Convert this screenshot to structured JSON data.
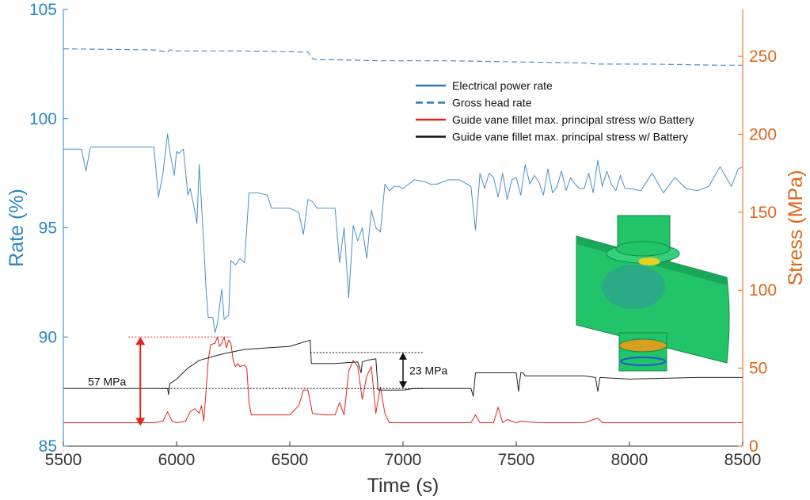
{
  "chart_data": {
    "type": "line",
    "title": "",
    "xlabel": "Time (s)",
    "ylabel_left": "Rate (%)",
    "ylabel_right": "Stress (MPa)",
    "xlim": [
      5500,
      8500
    ],
    "ylim_left": [
      85,
      105
    ],
    "ylim_right": [
      0,
      280
    ],
    "xticks": [
      5500,
      6000,
      6500,
      7000,
      7500,
      8000,
      8500
    ],
    "yticks_left": [
      85,
      90,
      95,
      100,
      105
    ],
    "yticks_right": [
      0,
      50,
      100,
      150,
      200,
      250
    ],
    "grid": false,
    "legend_position": "top-right",
    "colors": {
      "left_axis": "#2a86c4",
      "right_axis": "#e0651a",
      "power": "#4a90c8",
      "head": "#4a90c8",
      "stress_wo": "#e0241d",
      "stress_w": "#222222",
      "annotation_red": "#e0241d",
      "annotation_black": "#111111"
    },
    "series": [
      {
        "name": "Electrical power rate",
        "axis": "left",
        "style": "solid",
        "x": [
          5500,
          5580,
          5600,
          5620,
          5700,
          5800,
          5850,
          5900,
          5920,
          5940,
          5960,
          5970,
          5990,
          6000,
          6010,
          6030,
          6050,
          6060,
          6080,
          6090,
          6100,
          6120,
          6130,
          6140,
          6160,
          6170,
          6180,
          6200,
          6210,
          6230,
          6240,
          6260,
          6280,
          6300,
          6310,
          6320,
          6340,
          6360,
          6400,
          6420,
          6500,
          6540,
          6560,
          6580,
          6600,
          6620,
          6650,
          6680,
          6700,
          6720,
          6740,
          6760,
          6780,
          6800,
          6820,
          6840,
          6860,
          6880,
          6900,
          6920,
          6940,
          6960,
          6980,
          7000,
          7050,
          7100,
          7120,
          7150,
          7200,
          7250,
          7300,
          7320,
          7340,
          7360,
          7380,
          7400,
          7420,
          7440,
          7460,
          7480,
          7500,
          7520,
          7540,
          7560,
          7580,
          7600,
          7620,
          7640,
          7660,
          7680,
          7700,
          7720,
          7740,
          7760,
          7780,
          7800,
          7820,
          7840,
          7860,
          7880,
          7900,
          7920,
          7940,
          7960,
          7980,
          8000,
          8050,
          8100,
          8150,
          8200,
          8250,
          8300,
          8350,
          8400,
          8450,
          8480,
          8500
        ],
        "values": [
          98.6,
          98.6,
          97.6,
          98.7,
          98.7,
          98.7,
          98.7,
          98.7,
          96.4,
          97.5,
          99.3,
          98.5,
          97.4,
          98.5,
          98.4,
          98.6,
          96.5,
          96.8,
          95.8,
          95.2,
          97.9,
          94.3,
          92.2,
          90.9,
          90.9,
          90.2,
          90.6,
          92.2,
          90.8,
          91.0,
          93.5,
          93.3,
          93.6,
          93.4,
          95.0,
          96.6,
          96.6,
          96.6,
          96.5,
          95.9,
          95.9,
          95.7,
          94.7,
          96.3,
          96.2,
          95.9,
          95.9,
          95.9,
          95.9,
          93.4,
          95.0,
          91.8,
          95.1,
          94.4,
          95.0,
          93.6,
          95.8,
          95.0,
          94.8,
          97.0,
          96.7,
          96.9,
          96.9,
          96.8,
          97.2,
          97.1,
          97.0,
          97.0,
          97.2,
          97.2,
          96.9,
          94.9,
          97.5,
          96.8,
          97.5,
          97.3,
          96.4,
          97.5,
          96.3,
          97.2,
          97.3,
          96.5,
          97.9,
          97.0,
          97.4,
          97.1,
          96.5,
          97.7,
          96.6,
          96.9,
          97.6,
          96.7,
          97.3,
          97.0,
          96.8,
          96.8,
          97.5,
          96.6,
          98.1,
          96.9,
          97.6,
          97.0,
          96.7,
          97.4,
          96.8,
          96.8,
          96.7,
          97.5,
          96.6,
          97.3,
          96.8,
          96.7,
          96.9,
          97.8,
          96.9,
          97.7,
          97.8
        ]
      },
      {
        "name": "Gross head rate",
        "axis": "left",
        "style": "dashed",
        "x": [
          5500,
          5900,
          5960,
          5970,
          6000,
          6300,
          6580,
          6600,
          6620,
          6700,
          6900,
          7200,
          7500,
          7800,
          7860,
          8100,
          8400,
          8500
        ],
        "values": [
          103.2,
          103.15,
          103.05,
          103.15,
          103.1,
          103.1,
          103.05,
          102.75,
          102.7,
          102.7,
          102.65,
          102.65,
          102.6,
          102.55,
          102.5,
          102.5,
          102.45,
          102.45
        ]
      },
      {
        "name": "Guide vane fillet max. principal stress w/o Battery",
        "axis": "right",
        "style": "solid",
        "x": [
          5500,
          5900,
          5940,
          5960,
          5980,
          6000,
          6040,
          6060,
          6080,
          6100,
          6110,
          6120,
          6130,
          6140,
          6150,
          6170,
          6180,
          6190,
          6200,
          6210,
          6220,
          6230,
          6240,
          6250,
          6260,
          6270,
          6280,
          6300,
          6310,
          6320,
          6330,
          6340,
          6400,
          6500,
          6540,
          6560,
          6580,
          6600,
          6650,
          6700,
          6720,
          6740,
          6760,
          6780,
          6800,
          6820,
          6840,
          6860,
          6880,
          6900,
          6920,
          6940,
          7000,
          7100,
          7200,
          7300,
          7320,
          7340,
          7400,
          7420,
          7440,
          7460,
          7500,
          7520,
          7600,
          7800,
          7860,
          7880,
          8000,
          8200,
          8500
        ],
        "values": [
          15,
          15,
          16,
          22,
          16,
          15,
          16,
          22,
          24,
          21,
          26,
          16,
          35,
          55,
          65,
          66,
          70,
          64,
          66,
          70,
          63,
          68,
          66,
          55,
          51,
          53,
          51,
          52,
          50,
          28,
          20,
          20,
          20,
          20,
          26,
          36,
          36,
          21,
          20,
          20,
          28,
          20,
          48,
          55,
          51,
          30,
          45,
          51,
          21,
          38,
          21,
          15,
          15,
          15,
          15,
          15,
          20,
          15,
          15,
          25,
          15,
          17,
          15,
          16,
          15,
          15,
          18,
          15,
          15,
          15,
          15
        ]
      },
      {
        "name": "Guide vane fillet max. principal stress w/ Battery",
        "axis": "right",
        "style": "solid",
        "x": [
          5500,
          5900,
          5960,
          5965,
          5970,
          6000,
          6050,
          6100,
          6200,
          6300,
          6400,
          6500,
          6590,
          6595,
          6600,
          6700,
          6800,
          6815,
          6820,
          6840,
          6880,
          6890,
          6900,
          7000,
          7050,
          7300,
          7310,
          7320,
          7500,
          7510,
          7520,
          7530,
          7540,
          7800,
          7850,
          7860,
          7870,
          8000,
          8300,
          8500
        ],
        "values": [
          37,
          37,
          37,
          33,
          40,
          43,
          50,
          55,
          59,
          62,
          63,
          64,
          68,
          53,
          53,
          53,
          54,
          47,
          54,
          55,
          56,
          36,
          36,
          36,
          37,
          37,
          32,
          47,
          47,
          35,
          47,
          47,
          45,
          45,
          44,
          35,
          44,
          43,
          44,
          44
        ]
      }
    ],
    "legend": [
      {
        "label": "Electrical power rate",
        "style": "solid",
        "color": "#2a7ab8"
      },
      {
        "label": "Gross head rate",
        "style": "dashed",
        "color": "#2a7ab8"
      },
      {
        "label": "Guide vane fillet max. principal stress w/o Battery",
        "style": "solid",
        "color": "#e0241d"
      },
      {
        "label": "Guide vane fillet max. principal stress w/ Battery",
        "style": "solid",
        "color": "#111111"
      }
    ],
    "annotations": [
      {
        "text": "57 MPa",
        "color": "red",
        "from": 13,
        "to": 70,
        "x": 5840,
        "ref_line_x": [
          5840,
          6240
        ]
      },
      {
        "text": "23 MPa",
        "color": "black",
        "from": 37,
        "to": 60,
        "x": 7000,
        "ref_line_x_top": [
          6590,
          7050
        ],
        "ref_line_x_bottom": [
          5960,
          7050
        ]
      }
    ],
    "inset_image": "guide-vane-fea-contour"
  }
}
